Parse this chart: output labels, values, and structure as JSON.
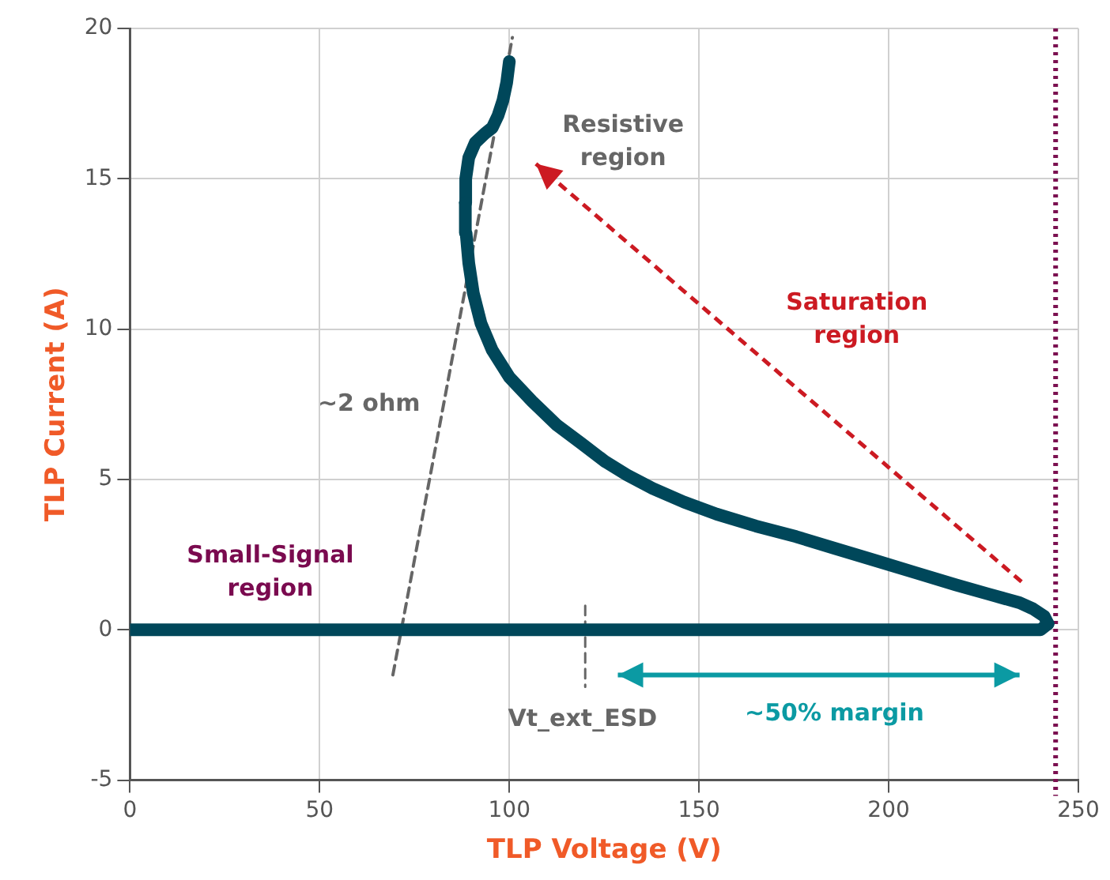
{
  "chart_data": {
    "type": "line",
    "xlabel": "TLP Voltage (V)",
    "ylabel": "TLP Current (A)",
    "xlim": [
      0,
      250
    ],
    "ylim": [
      -5,
      20
    ],
    "xticks": [
      0,
      50,
      100,
      150,
      200,
      250
    ],
    "yticks": [
      -5,
      0,
      5,
      10,
      15,
      20
    ],
    "grid": true,
    "legend": false,
    "marker": "none",
    "series": [
      {
        "color": "#00475a",
        "x": [
          0,
          60,
          120,
          180,
          240,
          242
        ],
        "values": [
          0,
          0,
          0,
          0,
          0,
          0.2
        ]
      },
      {
        "color": "#00475a",
        "x": [
          242,
          241,
          238,
          234.5,
          226,
          217.6,
          207,
          196.6,
          186,
          175.6,
          165,
          154.6,
          146,
          137.8,
          131,
          125.2,
          119,
          112.6,
          106,
          100,
          95.5,
          92.5,
          90.5,
          89.3,
          88.6,
          88.4
        ],
        "values": [
          0.2,
          0.45,
          0.7,
          0.9,
          1.2,
          1.5,
          1.9,
          2.3,
          2.7,
          3.1,
          3.45,
          3.85,
          4.25,
          4.7,
          5.15,
          5.6,
          6.2,
          6.8,
          7.6,
          8.4,
          9.3,
          10.2,
          11.2,
          12.2,
          13.2,
          14.2
        ]
      },
      {
        "color": "#00475a",
        "x": [
          88.4,
          88.5,
          89.3,
          91,
          93.5,
          95.5,
          97,
          98.3,
          99.3,
          100
        ],
        "values": [
          14.2,
          15,
          15.7,
          16.2,
          16.5,
          16.7,
          17.1,
          17.6,
          18.2,
          18.9
        ]
      },
      {
        "color": "#666666",
        "line_style": "dashed",
        "x": [
          69.3,
          100.8
        ],
        "values": [
          -1.5,
          19.7
        ]
      },
      {
        "color": "#666666",
        "line_style": "dashed",
        "x": [
          120,
          120
        ],
        "values": [
          0.8,
          -1.9
        ]
      }
    ],
    "ref_lines": [
      {
        "axis": "x",
        "value": 244,
        "color": "#7b1050",
        "line_style": "dotted"
      }
    ],
    "annotations": [
      "Resistive\nregion",
      "Saturation\nregion",
      "~2 ohm",
      "Small-Signal\nregion",
      "Vt_ext_ESD",
      "~50% margin"
    ]
  }
}
